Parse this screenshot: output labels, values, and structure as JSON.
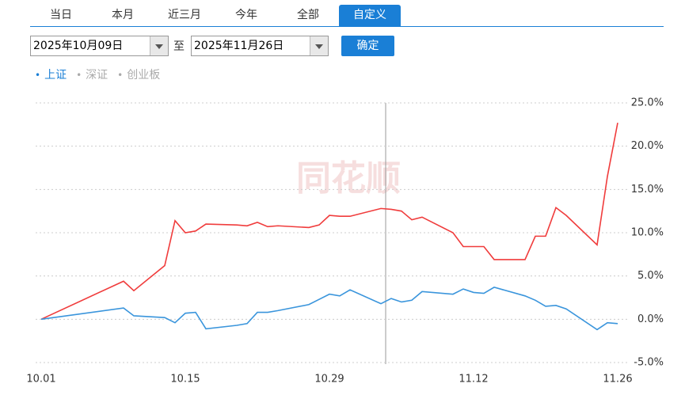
{
  "ui": {
    "tabs": [
      {
        "label": "当日",
        "active": false
      },
      {
        "label": "本月",
        "active": false
      },
      {
        "label": "近三月",
        "active": false
      },
      {
        "label": "今年",
        "active": false
      },
      {
        "label": "全部",
        "active": false
      },
      {
        "label": "自定义",
        "active": true
      }
    ],
    "start_date": "2025年10月09日",
    "separator": "至",
    "end_date": "2025年11月26日",
    "confirm": "确定",
    "legend": [
      {
        "label": "上证",
        "active": true
      },
      {
        "label": "深证",
        "active": false
      },
      {
        "label": "创业板",
        "active": false
      }
    ],
    "watermark": "同花顺"
  },
  "chart_data": {
    "type": "line",
    "x": [
      "10.01",
      "10.09",
      "10.10",
      "10.13",
      "10.14",
      "10.15",
      "10.16",
      "10.17",
      "10.20",
      "10.21",
      "10.22",
      "10.23",
      "10.24",
      "10.27",
      "10.28",
      "10.29",
      "10.30",
      "10.31",
      "11.03",
      "11.04",
      "11.05",
      "11.06",
      "11.07",
      "11.10",
      "11.11",
      "11.12",
      "11.13",
      "11.14",
      "11.17",
      "11.18",
      "11.19",
      "11.20",
      "11.21",
      "11.24",
      "11.25",
      "11.26"
    ],
    "series": [
      {
        "color": "#f03c3c",
        "values": [
          0,
          4.4,
          3.3,
          6.2,
          11.4,
          10.0,
          10.2,
          11.0,
          10.9,
          10.8,
          11.2,
          10.7,
          10.8,
          10.6,
          10.9,
          12.0,
          11.9,
          11.9,
          12.8,
          12.7,
          12.5,
          11.5,
          11.8,
          10.0,
          8.4,
          8.4,
          8.4,
          6.9,
          6.9,
          9.6,
          9.6,
          12.9,
          12.0,
          8.6,
          16.5,
          22.7
        ]
      },
      {
        "color": "#3a95dc",
        "values": [
          0,
          1.3,
          0.4,
          0.2,
          -0.4,
          0.7,
          0.8,
          -1.1,
          -0.7,
          -0.5,
          0.8,
          0.8,
          1.0,
          1.7,
          2.3,
          2.9,
          2.7,
          3.4,
          1.8,
          2.4,
          2.0,
          2.2,
          3.2,
          2.9,
          3.5,
          3.1,
          3.0,
          3.7,
          2.7,
          2.2,
          1.5,
          1.6,
          1.2,
          -1.2,
          -0.4,
          -0.5
        ]
      }
    ],
    "xlim": [
      "10.01",
      "11.26"
    ],
    "xticks": [
      "10.01",
      "10.15",
      "10.29",
      "11.12",
      "11.26"
    ],
    "ylim": [
      -5,
      25
    ],
    "yticks": [
      {
        "value": -5,
        "label": "-5.0%"
      },
      {
        "value": 0,
        "label": "0.0%"
      },
      {
        "value": 5,
        "label": "5.0%"
      },
      {
        "value": 10,
        "label": "10.0%"
      },
      {
        "value": 15,
        "label": "15.0%"
      },
      {
        "value": 20,
        "label": "20.0%"
      },
      {
        "value": 25,
        "label": "25.0%"
      }
    ],
    "grid": true
  }
}
